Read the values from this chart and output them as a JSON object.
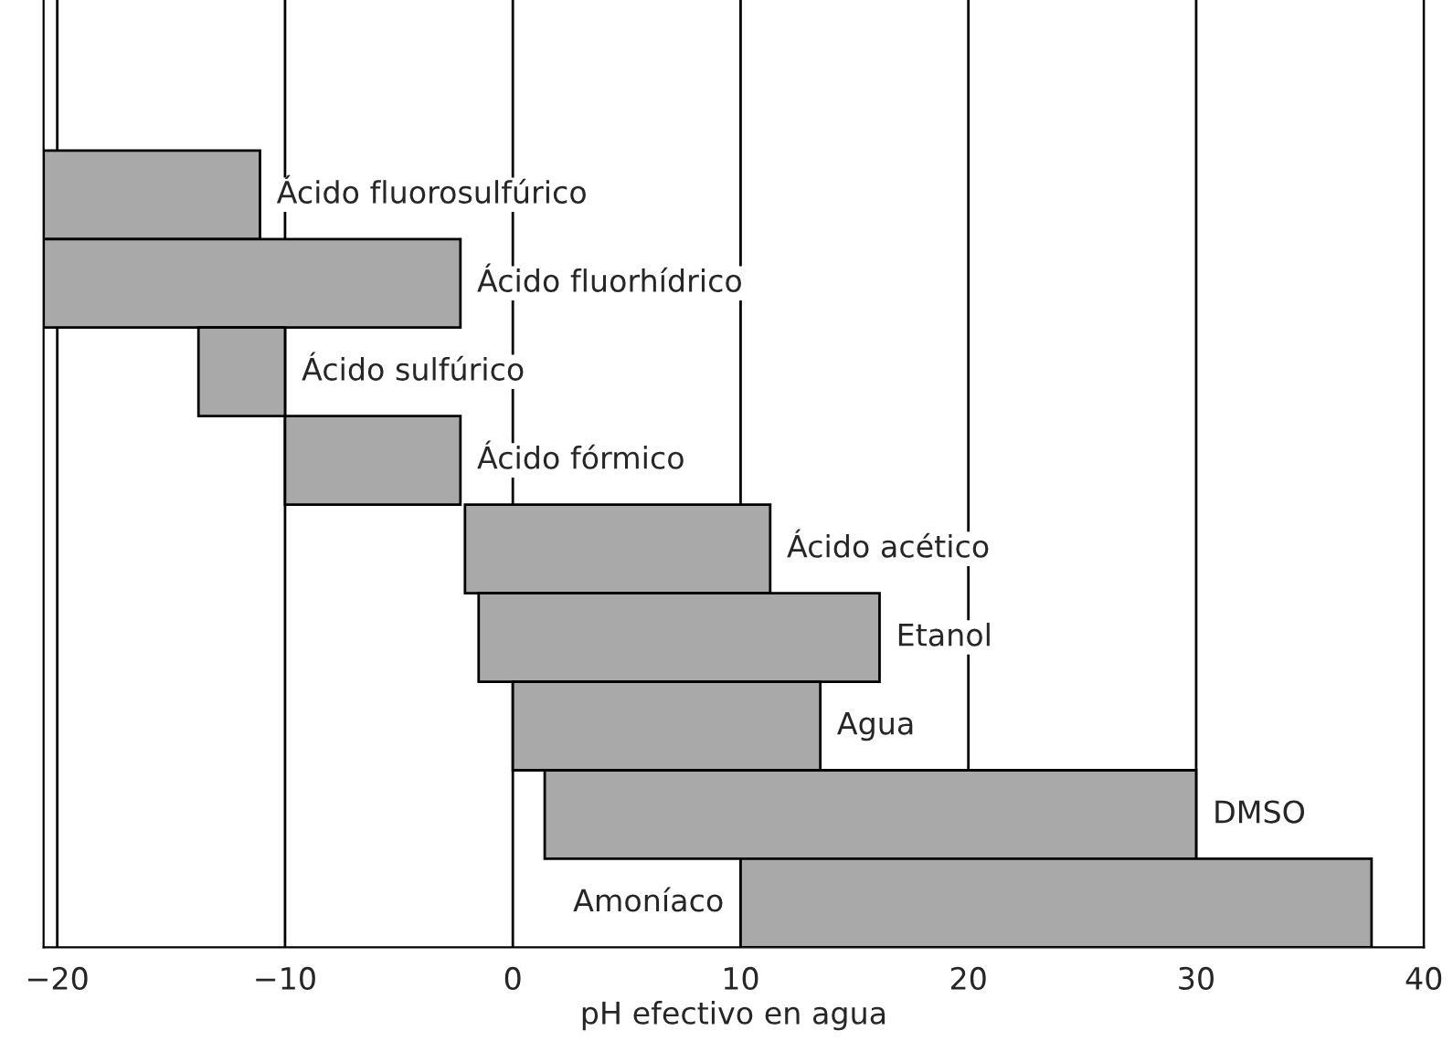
{
  "chart_data": {
    "type": "bar",
    "orientation": "horizontal",
    "xlabel": "pH efectivo en agua",
    "categories": [
      "Ácido fluorosulfúrico",
      "Ácido fluorhídrico",
      "Ácido sulfúrico",
      "Ácido fórmico",
      "Ácido acético",
      "Etanol",
      "Agua",
      "DMSO",
      "Amoníaco"
    ],
    "base": [
      -20.6,
      -20.6,
      -13.8,
      -10,
      -2.1,
      -1.5,
      0,
      1.4,
      10
    ],
    "values": [
      9.5,
      18.3,
      3.8,
      7.7,
      13.4,
      17.6,
      13.5,
      28.6,
      27.7
    ],
    "color": "#a9a9a9",
    "xlim": [
      -20.6,
      40
    ],
    "xticks": [
      {
        "value": -20,
        "label": "−20"
      },
      {
        "value": -10,
        "label": "−10"
      },
      0,
      10,
      20,
      30,
      40
    ],
    "grid": "x",
    "tick_labels": "x"
  }
}
